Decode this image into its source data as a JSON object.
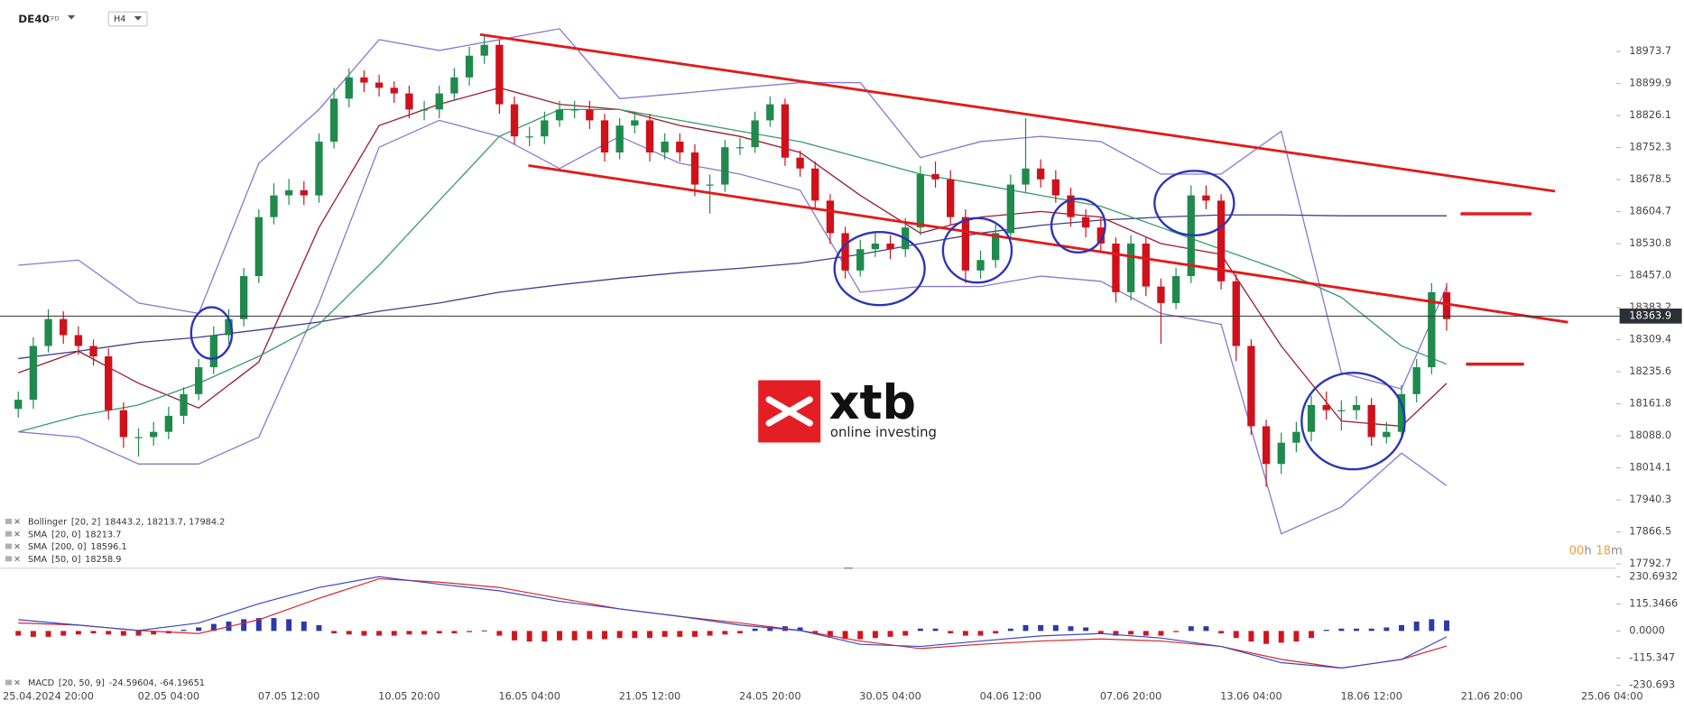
{
  "header": {
    "symbol": "DE40",
    "instrument": "CFD",
    "timeframe": "H4"
  },
  "watermark": {
    "brand": "xtb",
    "tagline": "online investing"
  },
  "countdown": {
    "hours": "00",
    "hours_unit": "h",
    "minutes": "18",
    "minutes_unit": "m"
  },
  "chart_data": [
    {
      "type": "candlestick",
      "categories": [
        null,
        null,
        "25.04.2024 20:00",
        null,
        null,
        null,
        null,
        null,
        null,
        null,
        "02.05 04:00",
        null,
        null,
        null,
        null,
        null,
        null,
        null,
        "07.05 12:00",
        null,
        null,
        null,
        null,
        null,
        null,
        null,
        "10.05 20:00",
        null,
        null,
        null,
        null,
        null,
        null,
        null,
        "16.05 04:00",
        null,
        null,
        null,
        null,
        null,
        null,
        null,
        "21.05 12:00",
        null,
        null,
        null,
        null,
        null,
        null,
        null,
        "24.05 20:00",
        null,
        null,
        null,
        null,
        null,
        null,
        null,
        "30.05 04:00",
        null,
        null,
        null,
        null,
        null,
        null,
        null,
        "04.06 12:00",
        null,
        null,
        null,
        null,
        null,
        null,
        null,
        "07.06 20:00",
        null,
        null,
        null,
        null,
        null,
        null,
        null,
        "13.06 04:00",
        null,
        null,
        null,
        null,
        null,
        null,
        null,
        "18.06 12:00",
        null,
        null,
        null,
        null,
        null,
        null,
        null,
        "21.06 20:00",
        null,
        null,
        null,
        null,
        null,
        null,
        null,
        "25.06 04:00"
      ],
      "open": [
        18150,
        18171,
        18295,
        18357,
        18320,
        18295,
        18271,
        18147,
        18085,
        18085,
        18097,
        18134,
        18184,
        18246,
        18320,
        18357,
        18456,
        18592,
        18642,
        18654,
        18642,
        18766,
        18865,
        18914,
        18902,
        18890,
        18877,
        18840,
        18840,
        18877,
        18914,
        18964,
        18989,
        18852,
        18778,
        18778,
        18815,
        18840,
        18840,
        18815,
        18741,
        18803,
        18815,
        18741,
        18766,
        18741,
        18667,
        18667,
        18753,
        18753,
        18815,
        18852,
        18729,
        18704,
        18630,
        18555,
        18469,
        18518,
        18531,
        18518,
        18568,
        18691,
        18679,
        18592,
        18469,
        18493,
        18555,
        18667,
        18704,
        18679,
        18642,
        18592,
        18568,
        18531,
        18419,
        18531,
        18432,
        18394,
        18456,
        18642,
        18630,
        18444,
        18295,
        18110,
        18023,
        18072,
        18097,
        18159,
        18147,
        18147,
        18159,
        18085,
        18097,
        18184,
        18246,
        18419,
        null,
        null,
        null,
        null,
        null,
        null,
        null,
        null,
        null,
        null,
        null
      ],
      "high": [
        18190,
        18315,
        18380,
        18375,
        18340,
        18310,
        18290,
        18165,
        18105,
        18120,
        18155,
        18200,
        18265,
        18340,
        18380,
        18475,
        18610,
        18670,
        18680,
        18675,
        18785,
        18890,
        18935,
        18930,
        18920,
        18905,
        18895,
        18860,
        18895,
        18935,
        18985,
        19010,
        19000,
        18870,
        18800,
        18835,
        18860,
        18860,
        18860,
        18830,
        18820,
        18835,
        18830,
        18785,
        18785,
        18760,
        18690,
        18770,
        18775,
        18835,
        18870,
        18865,
        18745,
        18720,
        18645,
        18570,
        18540,
        18555,
        18550,
        18590,
        18710,
        18720,
        18700,
        18610,
        18515,
        18575,
        18690,
        18820,
        18725,
        18700,
        18660,
        18610,
        18590,
        18545,
        18550,
        18545,
        18450,
        18475,
        18665,
        18665,
        18645,
        18460,
        18310,
        18125,
        18095,
        18120,
        18180,
        18190,
        18170,
        18180,
        18175,
        18120,
        18205,
        18265,
        18440,
        18440,
        null,
        null,
        null,
        null,
        null,
        null,
        null,
        null,
        null,
        null,
        null
      ],
      "low": [
        18130,
        18150,
        18280,
        18300,
        18275,
        18250,
        18125,
        18060,
        18040,
        18065,
        18080,
        18115,
        18170,
        18230,
        18300,
        18340,
        18440,
        18575,
        18620,
        18620,
        18625,
        18750,
        18845,
        18880,
        18870,
        18855,
        18820,
        18815,
        18820,
        18860,
        18895,
        18945,
        18830,
        18760,
        18755,
        18760,
        18800,
        18820,
        18795,
        18720,
        18725,
        18785,
        18720,
        18725,
        18720,
        18640,
        18600,
        18650,
        18735,
        18740,
        18800,
        18710,
        18685,
        18610,
        18530,
        18450,
        18455,
        18500,
        18495,
        18500,
        18550,
        18660,
        18575,
        18440,
        18450,
        18475,
        18540,
        18650,
        18660,
        18625,
        18570,
        18545,
        18510,
        18395,
        18400,
        18410,
        18300,
        18380,
        18440,
        18610,
        18425,
        18260,
        18090,
        17970,
        18000,
        18050,
        18075,
        18125,
        18100,
        18125,
        18065,
        18070,
        18080,
        18165,
        18230,
        18330,
        null,
        null,
        null,
        null,
        null,
        null,
        null,
        null,
        null,
        null,
        null
      ],
      "close": [
        18171,
        18295,
        18357,
        18320,
        18295,
        18271,
        18147,
        18085,
        18085,
        18097,
        18134,
        18184,
        18246,
        18320,
        18357,
        18456,
        18592,
        18642,
        18654,
        18642,
        18766,
        18865,
        18914,
        18902,
        18890,
        18877,
        18840,
        18840,
        18877,
        18914,
        18964,
        18989,
        18852,
        18778,
        18778,
        18815,
        18840,
        18840,
        18815,
        18741,
        18803,
        18815,
        18741,
        18766,
        18741,
        18667,
        18667,
        18753,
        18753,
        18815,
        18852,
        18729,
        18704,
        18630,
        18555,
        18469,
        18518,
        18531,
        18518,
        18568,
        18691,
        18679,
        18592,
        18469,
        18493,
        18555,
        18667,
        18704,
        18679,
        18642,
        18592,
        18568,
        18531,
        18419,
        18531,
        18432,
        18394,
        18456,
        18642,
        18630,
        18444,
        18295,
        18110,
        18023,
        18072,
        18097,
        18159,
        18147,
        18147,
        18159,
        18085,
        18097,
        18184,
        18246,
        18419,
        18357,
        null,
        null,
        null,
        null,
        null,
        null,
        null,
        null,
        null,
        null,
        null
      ],
      "up_color": "#1f8a4c",
      "down_color": "#d0101a",
      "ylim": [
        17783,
        19087
      ],
      "yticks": [
        18973.7,
        18899.9,
        18826.1,
        18752.3,
        18678.5,
        18604.7,
        18530.8,
        {
          "value": 18457,
          "label": "18457.0"
        },
        18383.2,
        18309.4,
        18235.6,
        18161.8,
        {
          "value": 18088,
          "label": "18088.0"
        },
        18014.1,
        17940.3,
        17866.5,
        17792.7
      ],
      "last_price": 18363.9,
      "indicator_x": [
        0,
        4,
        8,
        12,
        16,
        20,
        24,
        28,
        32,
        36,
        40,
        44,
        48,
        52,
        56,
        60,
        64,
        68,
        72,
        76,
        80,
        84,
        88,
        92,
        95
      ],
      "indicators": [
        {
          "name": "Bollinger",
          "params": "[20, 2]",
          "readout": "18443.2,  18213.7,  17984.2",
          "color": "#8a78d0",
          "upper": [
            18481,
            18493,
            18394,
            18370,
            18716,
            18840,
            19001,
            18976,
            19001,
            19026,
            18865,
            18877,
            18890,
            18902,
            18902,
            18729,
            18766,
            18778,
            18766,
            18691,
            18691,
            18790,
            18233,
            18196,
            18432
          ],
          "lower": [
            18097,
            18085,
            18023,
            18023,
            18085,
            18394,
            18753,
            18815,
            18778,
            18704,
            18778,
            18716,
            18691,
            18654,
            18419,
            18432,
            18432,
            18456,
            18444,
            18370,
            18345,
            17862,
            17924,
            18048,
            17973
          ]
        },
        {
          "name": "SMA",
          "params": "[20, 0]",
          "readout": "18213.7",
          "color": "#9b1c2e",
          "values": [
            18233,
            18283,
            18209,
            18152,
            18258,
            18568,
            18803,
            18852,
            18890,
            18852,
            18840,
            18803,
            18778,
            18741,
            18642,
            18555,
            18592,
            18605,
            18592,
            18531,
            18506,
            18295,
            18122,
            18110,
            18209
          ]
        },
        {
          "name": "SMA",
          "params": "[200, 0]",
          "readout": "18596.1",
          "color": "#3d3f8f",
          "values": [
            18266,
            18283,
            18303,
            18315,
            18332,
            18350,
            18375,
            18394,
            18419,
            18436,
            18451,
            18464,
            18474,
            18486,
            18506,
            18531,
            18555,
            18573,
            18585,
            18592,
            18597,
            18597,
            18595,
            18595,
            18595
          ]
        },
        {
          "name": "SMA",
          "params": "[50, 0]",
          "readout": "18258.9",
          "color": "#3a9a6f",
          "values": [
            18097,
            18134,
            18159,
            18209,
            18271,
            18345,
            18481,
            18630,
            18778,
            18840,
            18840,
            18815,
            18790,
            18766,
            18729,
            18691,
            18667,
            18642,
            18617,
            18568,
            18518,
            18469,
            18407,
            18295,
            18253
          ]
        }
      ]
    },
    {
      "type": "macd",
      "name": "MACD",
      "params": "[20, 50, 9]",
      "readout": "-24.59604,  -64.19651",
      "ylim": [
        -249,
        263
      ],
      "yticks": [
        230.6932,
        115.3466,
        {
          "value": 0,
          "label": "0.0000"
        },
        -115.347,
        -230.693
      ],
      "histogram": [
        -20,
        -25,
        -25,
        -20,
        -15,
        -10,
        -15,
        -20,
        -20,
        -15,
        -10,
        5,
        15,
        30,
        40,
        50,
        55,
        55,
        50,
        40,
        25,
        -10,
        -15,
        -20,
        -20,
        -20,
        -15,
        -15,
        -10,
        -10,
        -5,
        2,
        -20,
        -40,
        -45,
        -45,
        -40,
        -40,
        -35,
        -35,
        -30,
        -30,
        -30,
        -25,
        -25,
        -25,
        -20,
        -15,
        -10,
        10,
        20,
        20,
        15,
        -10,
        -25,
        -35,
        -35,
        -30,
        -25,
        -20,
        10,
        10,
        -10,
        -20,
        -20,
        -10,
        10,
        25,
        25,
        25,
        20,
        15,
        -10,
        -20,
        -15,
        -20,
        -20,
        -5,
        20,
        20,
        -10,
        -30,
        -45,
        -55,
        -50,
        -45,
        -30,
        5,
        10,
        10,
        10,
        15,
        25,
        40,
        50,
        45,
        null,
        null,
        null,
        null,
        null,
        null,
        null,
        null,
        null,
        null,
        null
      ],
      "pos_color": "#2b3aa8",
      "neg_color": "#d3141c",
      "line_x": [
        0,
        4,
        8,
        12,
        16,
        20,
        24,
        28,
        32,
        36,
        40,
        44,
        48,
        52,
        56,
        60,
        64,
        68,
        72,
        76,
        80,
        84,
        88,
        92,
        95
      ],
      "macd": [
        48,
        25,
        2,
        34,
        116,
        185,
        231,
        199,
        171,
        126,
        94,
        62,
        25,
        2,
        -57,
        -66,
        -43,
        -21,
        -11,
        -30,
        -66,
        -135,
        -158,
        -121,
        -25
      ],
      "signal": [
        34,
        25,
        2,
        -11,
        48,
        139,
        222,
        208,
        185,
        139,
        94,
        62,
        34,
        2,
        -43,
        -75,
        -57,
        -43,
        -34,
        -43,
        -66,
        -121,
        -158,
        -121,
        -64
      ],
      "macd_color": "#3a49c8",
      "signal_color": "#d8262c"
    }
  ]
}
